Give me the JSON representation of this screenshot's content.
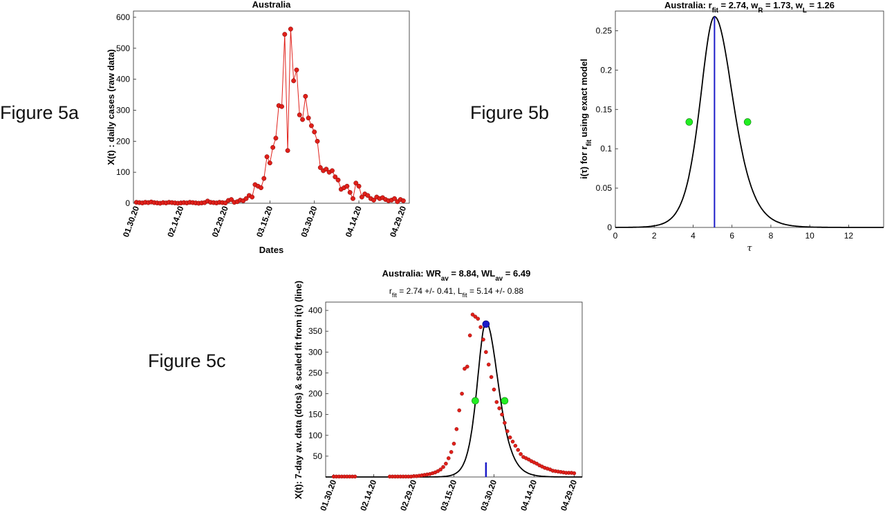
{
  "labels": {
    "fig5a": "Figure 5a",
    "fig5b": "Figure 5b",
    "fig5c": "Figure 5c"
  },
  "chart_data": [
    {
      "id": "5a",
      "type": "line",
      "title": "Australia",
      "xlabel": "Dates",
      "ylabel": "X(t) : daily cases (raw data)",
      "ylim": [
        0,
        620
      ],
      "yticks": [
        0,
        100,
        200,
        300,
        400,
        500,
        600
      ],
      "xtick_labels": [
        "01.30.20",
        "02.14.20",
        "02.29.20",
        "03.15.20",
        "03.30.20",
        "04.14.20",
        "04.29.20"
      ],
      "xtick_days": [
        0,
        15,
        30,
        45,
        60,
        75,
        90
      ],
      "x_days": [
        0,
        1,
        2,
        3,
        4,
        5,
        6,
        7,
        8,
        9,
        10,
        11,
        12,
        13,
        14,
        15,
        16,
        17,
        18,
        19,
        20,
        21,
        22,
        23,
        24,
        25,
        26,
        27,
        28,
        29,
        30,
        31,
        32,
        33,
        34,
        35,
        36,
        37,
        38,
        39,
        40,
        41,
        42,
        43,
        44,
        45,
        46,
        47,
        48,
        49,
        50,
        51,
        52,
        53,
        54,
        55,
        56,
        57,
        58,
        59,
        60,
        61,
        62,
        63,
        64,
        65,
        66,
        67,
        68,
        69,
        70,
        71,
        72,
        73,
        74,
        75,
        76,
        77,
        78,
        79,
        80,
        81,
        82,
        83,
        84,
        85,
        86,
        87,
        88,
        89,
        90
      ],
      "values": [
        3,
        2,
        1,
        3,
        2,
        4,
        2,
        1,
        0,
        2,
        1,
        3,
        2,
        1,
        0,
        1,
        2,
        1,
        3,
        2,
        1,
        0,
        1,
        2,
        7,
        3,
        2,
        1,
        3,
        2,
        1,
        9,
        12,
        3,
        5,
        10,
        8,
        15,
        25,
        20,
        60,
        55,
        50,
        80,
        150,
        130,
        180,
        210,
        315,
        312,
        545,
        170,
        562,
        395,
        430,
        285,
        270,
        345,
        275,
        250,
        230,
        200,
        115,
        105,
        110,
        100,
        105,
        85,
        75,
        45,
        50,
        55,
        35,
        15,
        65,
        55,
        20,
        30,
        25,
        15,
        10,
        20,
        15,
        18,
        12,
        8,
        10,
        15,
        5,
        12,
        8
      ],
      "series_color": "#e0201a",
      "grid": false
    },
    {
      "id": "5b",
      "type": "line",
      "title_main": "Australia: r",
      "title_sub1": "fit",
      "title_mid1": " = 2.74, w",
      "title_sub2": "R",
      "title_mid2": " = 1.73, w",
      "title_sub3": "L",
      "title_end": " = 1.26",
      "xlabel": "τ",
      "ylabel_main": "i(τ) for r",
      "ylabel_sub1": "fit",
      "ylabel_tail": " using exact model",
      "xlim": [
        0,
        13.8
      ],
      "ylim": [
        0,
        0.275
      ],
      "xticks": [
        "0",
        "2",
        "4",
        "6",
        "8",
        "10",
        "12"
      ],
      "xtick_values": [
        0,
        2,
        4,
        6,
        8,
        10,
        12
      ],
      "yticks": [
        "0",
        "0.05",
        "0.1",
        "0.15",
        "0.2",
        "0.25"
      ],
      "ytick_values": [
        0,
        0.05,
        0.1,
        0.15,
        0.2,
        0.25
      ],
      "peak_tau": 5.1,
      "peak_value": 0.268,
      "half_points": [
        [
          3.8,
          0.134
        ],
        [
          6.8,
          0.134
        ]
      ],
      "curve_color": "#000000",
      "peak_line_color": "#1a1ac8",
      "marker_color": "#22ee22",
      "grid": false
    },
    {
      "id": "5c",
      "type": "scatter",
      "title_main": "Australia: WR",
      "title_sub1": "av",
      "title_mid": " = 8.84, WL",
      "title_sub2": "av",
      "title_end": " = 6.49",
      "subtitle_a": "r",
      "subtitle_sub1": "fit",
      "subtitle_b": " = 2.74 +/- 0.41, L",
      "subtitle_sub2": "fit",
      "subtitle_c": " = 5.14 +/- 0.88",
      "ylabel": "X(t): 7-day av. data (dots) & scaled fit from i(τ) (line)",
      "ylim": [
        0,
        420
      ],
      "yticks": [
        50,
        100,
        150,
        200,
        250,
        300,
        350,
        400
      ],
      "xtick_labels": [
        "01.30.20",
        "02.14.20",
        "02.29.20",
        "03.15.20",
        "03.30.20",
        "04.14.20",
        "04.29.20"
      ],
      "xtick_days": [
        0,
        15,
        30,
        45,
        60,
        75,
        90
      ],
      "x_days": [
        0,
        1,
        2,
        3,
        4,
        5,
        6,
        7,
        8,
        21,
        22,
        23,
        24,
        25,
        26,
        27,
        28,
        29,
        30,
        31,
        32,
        33,
        34,
        35,
        36,
        37,
        38,
        39,
        40,
        41,
        42,
        43,
        44,
        45,
        46,
        47,
        48,
        49,
        50,
        51,
        52,
        53,
        54,
        55,
        56,
        57,
        58,
        59,
        60,
        61,
        62,
        63,
        64,
        65,
        66,
        67,
        68,
        69,
        70,
        71,
        72,
        73,
        74,
        75,
        76,
        77,
        78,
        79,
        80,
        81,
        82,
        83,
        84,
        85,
        86,
        87,
        88,
        89,
        90
      ],
      "values": [
        1,
        1,
        1,
        1,
        1,
        1,
        1,
        1,
        1,
        1,
        1,
        1,
        1,
        1,
        1,
        1,
        1,
        1,
        2,
        2,
        3,
        4,
        5,
        6,
        7,
        9,
        11,
        14,
        18,
        24,
        32,
        45,
        60,
        80,
        115,
        160,
        200,
        260,
        265,
        340,
        390,
        385,
        380,
        360,
        330,
        300,
        270,
        240,
        210,
        180,
        165,
        150,
        130,
        110,
        95,
        85,
        75,
        65,
        55,
        48,
        45,
        42,
        38,
        35,
        32,
        28,
        25,
        22,
        20,
        18,
        15,
        14,
        13,
        12,
        11,
        10,
        10,
        10,
        9
      ],
      "peak_day": 57,
      "peak_value": 367,
      "half_points": [
        [
          53,
          183
        ],
        [
          64,
          183
        ]
      ],
      "fit_center_day": 57,
      "fit_peak": 372,
      "fit_left_width": 4.4,
      "fit_right_width": 6.2,
      "marker_bar_value": 35,
      "dot_color": "#e0201a",
      "fit_color": "#000000",
      "peak_marker_color": "#1a1ac8",
      "half_marker_color": "#22ee22",
      "grid": false
    }
  ]
}
